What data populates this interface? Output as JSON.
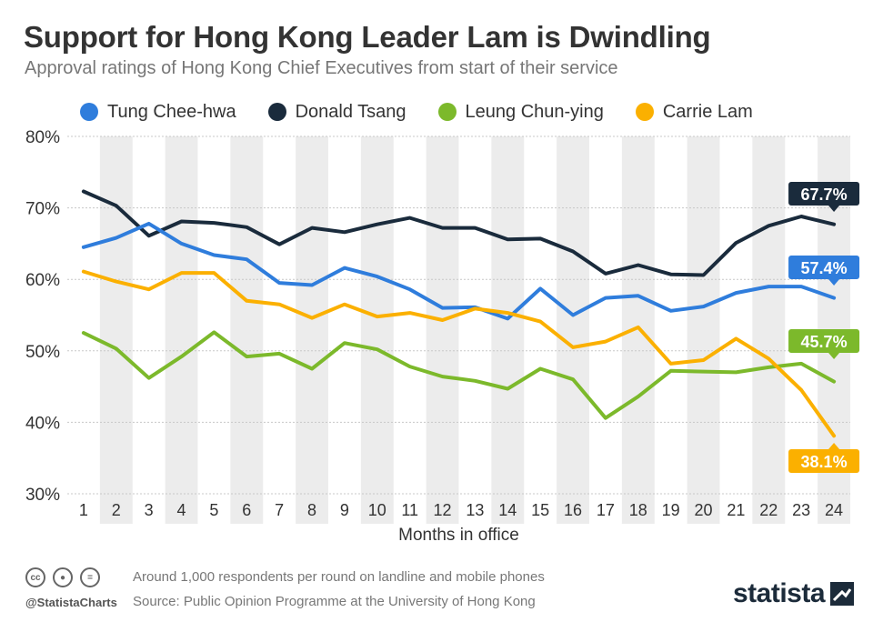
{
  "header": {
    "title": "Support for Hong Kong Leader Lam is Dwindling",
    "subtitle": "Approval ratings of Hong Kong Chief Executives from start of their service"
  },
  "footer": {
    "handle": "@StatistaCharts",
    "note": "Around 1,000 respondents per round on landline and mobile phones",
    "source": "Source: Public Opinion Programme at the University of Hong Kong",
    "brand": "statista",
    "license_icons": [
      "cc-icon",
      "by-icon",
      "nd-icon"
    ]
  },
  "chart_data": {
    "type": "line",
    "xlabel": "Months in office",
    "ylabel": "",
    "x": [
      1,
      2,
      3,
      4,
      5,
      6,
      7,
      8,
      9,
      10,
      11,
      12,
      13,
      14,
      15,
      16,
      17,
      18,
      19,
      20,
      21,
      22,
      23,
      24
    ],
    "ylim": [
      30,
      80
    ],
    "yticks": [
      "30%",
      "40%",
      "50%",
      "60%",
      "70%",
      "80%"
    ],
    "ytick_values": [
      30,
      40,
      50,
      60,
      70,
      80
    ],
    "alternating_column_shading": true,
    "legend_position": "top",
    "series": [
      {
        "name": "Tung Chee-hwa",
        "color": "#2f7ddc",
        "values": [
          64.5,
          65.8,
          67.8,
          65.0,
          63.4,
          62.8,
          59.5,
          59.2,
          61.6,
          60.4,
          58.6,
          56.0,
          56.1,
          54.5,
          58.7,
          55.0,
          57.4,
          57.7,
          55.6,
          56.2,
          58.1,
          59.0,
          59.0,
          57.4
        ],
        "end_label": "57.4%"
      },
      {
        "name": "Donald Tsang",
        "color": "#1a2b3c",
        "values": [
          72.3,
          70.3,
          66.1,
          68.1,
          67.9,
          67.3,
          64.9,
          67.2,
          66.6,
          67.7,
          68.6,
          67.2,
          67.2,
          65.6,
          65.7,
          63.9,
          60.8,
          62.0,
          60.7,
          60.6,
          65.1,
          67.5,
          68.8,
          67.7
        ],
        "end_label": "67.7%"
      },
      {
        "name": "Leung Chun-ying",
        "color": "#7cb92b",
        "values": [
          52.5,
          50.3,
          46.2,
          49.2,
          52.6,
          49.2,
          49.6,
          47.5,
          51.1,
          50.2,
          47.8,
          46.4,
          45.8,
          44.7,
          47.5,
          46.0,
          40.6,
          43.6,
          47.2,
          47.1,
          47.0,
          47.7,
          48.2,
          45.7
        ],
        "end_label": "45.7%"
      },
      {
        "name": "Carrie Lam",
        "color": "#fbb000",
        "values": [
          61.1,
          59.7,
          58.6,
          60.9,
          60.9,
          57.0,
          56.5,
          54.6,
          56.5,
          54.8,
          55.3,
          54.3,
          55.9,
          55.3,
          54.1,
          50.5,
          51.3,
          53.3,
          48.2,
          48.7,
          51.7,
          48.9,
          44.5,
          38.1
        ],
        "end_label": "38.1%"
      }
    ]
  }
}
